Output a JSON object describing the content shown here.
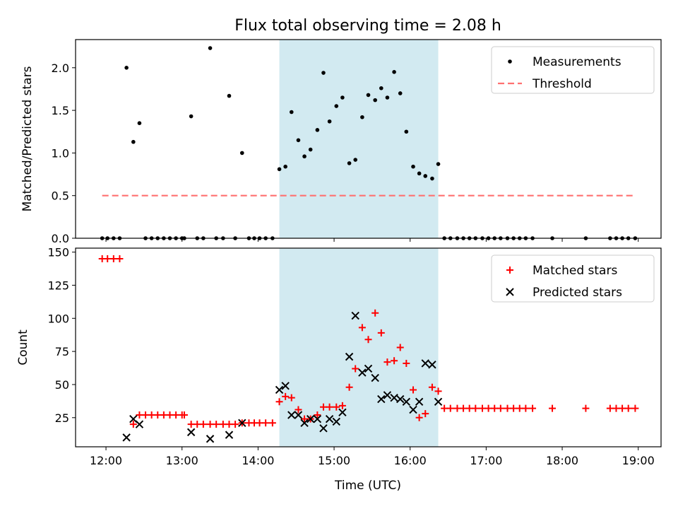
{
  "chart_data": {
    "type": "scatter",
    "title": "Flux total observing time = 2.08 h",
    "xlabel": "Time (UTC)",
    "x_unit": "hours UTC",
    "xlim": [
      11.6,
      19.3
    ],
    "xticks": [
      12,
      13,
      14,
      15,
      16,
      17,
      18,
      19
    ],
    "xtick_labels": [
      "12:00",
      "13:00",
      "14:00",
      "15:00",
      "16:00",
      "17:00",
      "18:00",
      "19:00"
    ],
    "shaded_span": {
      "x_start": 14.28,
      "x_end": 16.37,
      "color": "#add8e6"
    },
    "panels": [
      {
        "ylabel": "Matched/Predicted stars",
        "ylim": [
          0,
          2.33
        ],
        "yticks": [
          0.0,
          0.5,
          1.0,
          1.5,
          2.0
        ],
        "ytick_labels": [
          "0.0",
          "0.5",
          "1.0",
          "1.5",
          "2.0"
        ],
        "legend": {
          "position": "top-right",
          "entries": [
            "Measurements",
            "Threshold"
          ]
        },
        "series": [
          {
            "name": "Measurements",
            "marker": "dot",
            "color": "#000000",
            "x": [
              11.95,
              12.02,
              12.1,
              12.18,
              12.27,
              12.36,
              12.44,
              12.52,
              12.6,
              12.68,
              12.76,
              12.84,
              12.92,
              13.0,
              13.03,
              13.12,
              13.2,
              13.28,
              13.37,
              13.45,
              13.54,
              13.62,
              13.7,
              13.79,
              13.88,
              13.95,
              14.02,
              14.1,
              14.19,
              14.28,
              14.36,
              14.44,
              14.53,
              14.61,
              14.69,
              14.78,
              14.86,
              14.94,
              15.03,
              15.11,
              15.2,
              15.28,
              15.37,
              15.45,
              15.54,
              15.62,
              15.7,
              15.79,
              15.87,
              15.95,
              16.04,
              16.12,
              16.2,
              16.29,
              16.37,
              16.45,
              16.53,
              16.62,
              16.7,
              16.78,
              16.86,
              16.95,
              17.03,
              17.11,
              17.19,
              17.28,
              17.36,
              17.44,
              17.52,
              17.61,
              17.87,
              18.31,
              18.63,
              18.71,
              18.79,
              18.87,
              18.96
            ],
            "y": [
              0,
              0,
              0,
              0,
              2.0,
              1.13,
              1.35,
              0,
              0,
              0,
              0,
              0,
              0,
              0,
              0,
              1.43,
              0,
              0,
              2.23,
              0,
              0,
              1.67,
              0,
              1.0,
              0,
              0,
              0,
              0,
              0,
              0.81,
              0.84,
              1.48,
              1.15,
              0.96,
              1.04,
              1.27,
              1.94,
              1.37,
              1.55,
              1.65,
              0.88,
              0.92,
              1.42,
              1.68,
              1.62,
              1.76,
              1.65,
              1.95,
              1.7,
              1.25,
              0.84,
              0.76,
              0.73,
              0.7,
              0.87,
              0,
              0,
              0,
              0,
              0,
              0,
              0,
              0,
              0,
              0,
              0,
              0,
              0,
              0,
              0,
              0,
              0,
              0,
              0,
              0,
              0,
              0
            ]
          },
          {
            "name": "Threshold",
            "style": "dashed",
            "color": "#ff7070",
            "x": [
              11.95,
              18.96
            ],
            "y": [
              0.5,
              0.5
            ]
          }
        ]
      },
      {
        "ylabel": "Count",
        "ylim": [
          3,
          153
        ],
        "yticks": [
          25,
          50,
          75,
          100,
          125,
          150
        ],
        "ytick_labels": [
          "25",
          "50",
          "75",
          "100",
          "125",
          "150"
        ],
        "legend": {
          "position": "top-right",
          "entries": [
            "Matched stars",
            "Predicted stars"
          ]
        },
        "series": [
          {
            "name": "Matched stars",
            "marker": "plus",
            "color": "#ff0000",
            "x": [
              11.95,
              12.02,
              12.1,
              12.18,
              12.36,
              12.44,
              12.52,
              12.6,
              12.68,
              12.76,
              12.84,
              12.92,
              13.0,
              13.03,
              13.12,
              13.2,
              13.28,
              13.37,
              13.45,
              13.54,
              13.62,
              13.7,
              13.79,
              13.88,
              13.95,
              14.02,
              14.1,
              14.19,
              14.28,
              14.36,
              14.44,
              14.53,
              14.61,
              14.69,
              14.78,
              14.86,
              14.94,
              15.03,
              15.11,
              15.2,
              15.28,
              15.37,
              15.45,
              15.54,
              15.62,
              15.7,
              15.79,
              15.87,
              15.95,
              16.04,
              16.12,
              16.2,
              16.29,
              16.37,
              16.45,
              16.53,
              16.62,
              16.7,
              16.78,
              16.86,
              16.95,
              17.03,
              17.11,
              17.19,
              17.28,
              17.36,
              17.44,
              17.52,
              17.61,
              17.87,
              18.31,
              18.63,
              18.71,
              18.79,
              18.87,
              18.96
            ],
            "y": [
              145,
              145,
              145,
              145,
              20,
              27,
              27,
              27,
              27,
              27,
              27,
              27,
              27,
              27,
              20,
              20,
              20,
              20,
              20,
              20,
              20,
              20,
              21,
              21,
              21,
              21,
              21,
              21,
              37,
              41,
              40,
              31,
              24,
              24,
              27,
              33,
              33,
              33,
              34,
              48,
              62,
              93,
              84,
              104,
              89,
              67,
              68,
              78,
              66,
              46,
              25,
              28,
              48,
              45,
              32,
              32,
              32,
              32,
              32,
              32,
              32,
              32,
              32,
              32,
              32,
              32,
              32,
              32,
              32,
              32,
              32,
              32,
              32,
              32,
              32,
              32
            ]
          },
          {
            "name": "Predicted stars",
            "marker": "x",
            "color": "#000000",
            "x": [
              12.27,
              12.36,
              12.44,
              13.12,
              13.37,
              13.62,
              13.79,
              14.28,
              14.36,
              14.44,
              14.53,
              14.61,
              14.69,
              14.78,
              14.86,
              14.94,
              15.03,
              15.11,
              15.2,
              15.28,
              15.37,
              15.45,
              15.54,
              15.62,
              15.7,
              15.79,
              15.87,
              15.95,
              16.04,
              16.12,
              16.2,
              16.29,
              16.37
            ],
            "y": [
              10,
              24,
              20,
              14,
              9,
              12,
              21,
              46,
              49,
              27,
              27,
              21,
              24,
              24,
              17,
              24,
              22,
              29,
              71,
              102,
              59,
              62,
              55,
              39,
              42,
              40,
              39,
              37,
              31,
              37,
              66,
              65,
              37
            ]
          }
        ]
      }
    ]
  }
}
